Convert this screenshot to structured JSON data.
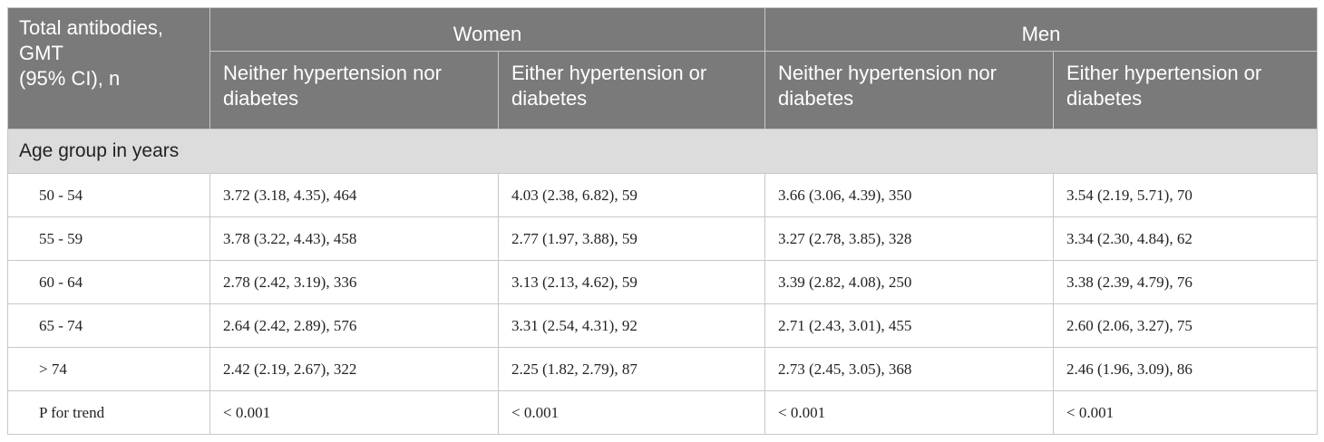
{
  "header": {
    "stub": [
      "Total antibodies,",
      "GMT",
      "(95% CI), n"
    ],
    "groups": [
      "Women",
      "Men"
    ],
    "subheaders": [
      [
        "Neither hypertension nor",
        "diabetes"
      ],
      [
        "Either hypertension or",
        "diabetes"
      ],
      [
        "Neither hypertension nor",
        "diabetes"
      ],
      [
        "Either hypertension or",
        "diabetes"
      ]
    ]
  },
  "section_label": "Age group in years",
  "rows": [
    {
      "label": "50 - 54",
      "cells": [
        "3.72 (3.18, 4.35), 464",
        "4.03 (2.38, 6.82), 59",
        "3.66 (3.06, 4.39), 350",
        "3.54 (2.19, 5.71), 70"
      ]
    },
    {
      "label": "55 - 59",
      "cells": [
        "3.78 (3.22, 4.43), 458",
        "2.77 (1.97, 3.88), 59",
        "3.27 (2.78, 3.85), 328",
        "3.34 (2.30, 4.84), 62"
      ]
    },
    {
      "label": "60 - 64",
      "cells": [
        "2.78 (2.42, 3.19), 336",
        "3.13 (2.13, 4.62), 59",
        "3.39 (2.82, 4.08), 250",
        "3.38 (2.39, 4.79), 76"
      ]
    },
    {
      "label": "65 - 74",
      "cells": [
        "2.64 (2.42, 2.89), 576",
        "3.31 (2.54, 4.31), 92",
        "2.71 (2.43, 3.01), 455",
        "2.60 (2.06, 3.27), 75"
      ]
    },
    {
      "label": "> 74",
      "cells": [
        "2.42 (2.19, 2.67), 322",
        "2.25 (1.82, 2.79), 87",
        "2.73 (2.45, 3.05), 368",
        "2.46 (1.96, 3.09), 86"
      ]
    },
    {
      "label": "P for trend",
      "cells": [
        "< 0.001",
        "< 0.001",
        "< 0.001",
        "< 0.001"
      ]
    }
  ]
}
